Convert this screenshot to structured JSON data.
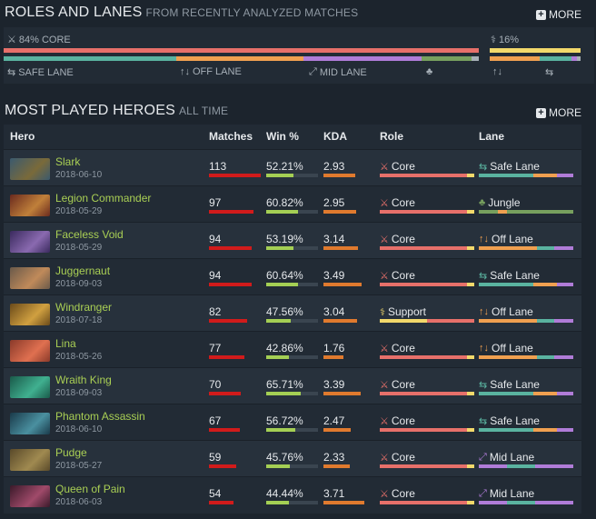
{
  "roles_section": {
    "title": "ROLES AND LANES",
    "subtitle": "FROM RECENTLY ANALYZED MATCHES",
    "more_label": "MORE",
    "core_label": "84% CORE",
    "support_label": "16%",
    "lanes": [
      {
        "label": "SAFE LANE",
        "icon": "safe-lane-icon"
      },
      {
        "label": "OFF LANE",
        "icon": "off-lane-icon"
      },
      {
        "label": "MID LANE",
        "icon": "mid-lane-icon"
      },
      {
        "label": "",
        "icon": "jungle-icon"
      }
    ],
    "support_lanes": [
      {
        "label": "",
        "icon": "off-lane-icon"
      },
      {
        "label": "",
        "icon": "safe-lane-icon"
      }
    ],
    "core_fraction": 0.84,
    "support_fraction": 0.16
  },
  "heroes_section": {
    "title": "MOST PLAYED HEROES",
    "subtitle": "ALL TIME",
    "more_label": "MORE",
    "columns": {
      "hero": "Hero",
      "matches": "Matches",
      "win": "Win %",
      "kda": "KDA",
      "role": "Role",
      "lane": "Lane"
    },
    "rows": [
      {
        "name": "Slark",
        "date": "2018-06-10",
        "matches": "113",
        "win": "52.21%",
        "kda": "2.93",
        "role": "Core",
        "lane": "Safe Lane",
        "avatar": "#3b5a6e",
        "avatar2": "#7a6a3a",
        "mfrac": 1.0,
        "wfrac": 0.52,
        "kfrac": 0.62,
        "roleType": "core",
        "laneType": "safe"
      },
      {
        "name": "Legion Commander",
        "date": "2018-05-29",
        "matches": "97",
        "win": "60.82%",
        "kda": "2.95",
        "role": "Core",
        "lane": "Jungle",
        "avatar": "#6a2a1e",
        "avatar2": "#c0803a",
        "mfrac": 0.86,
        "wfrac": 0.61,
        "kfrac": 0.63,
        "roleType": "core",
        "laneType": "jungle"
      },
      {
        "name": "Faceless Void",
        "date": "2018-05-29",
        "matches": "94",
        "win": "53.19%",
        "kda": "3.14",
        "role": "Core",
        "lane": "Off Lane",
        "avatar": "#3a2a5e",
        "avatar2": "#8a6ab0",
        "mfrac": 0.83,
        "wfrac": 0.53,
        "kfrac": 0.67,
        "roleType": "core",
        "laneType": "off"
      },
      {
        "name": "Juggernaut",
        "date": "2018-09-03",
        "matches": "94",
        "win": "60.64%",
        "kda": "3.49",
        "role": "Core",
        "lane": "Safe Lane",
        "avatar": "#6a5a4a",
        "avatar2": "#c08a5a",
        "mfrac": 0.83,
        "wfrac": 0.61,
        "kfrac": 0.74,
        "roleType": "core",
        "laneType": "safe"
      },
      {
        "name": "Windranger",
        "date": "2018-07-18",
        "matches": "82",
        "win": "47.56%",
        "kda": "3.04",
        "role": "Support",
        "lane": "Off Lane",
        "avatar": "#6a4a1a",
        "avatar2": "#d0a040",
        "mfrac": 0.73,
        "wfrac": 0.48,
        "kfrac": 0.65,
        "roleType": "support",
        "laneType": "off"
      },
      {
        "name": "Lina",
        "date": "2018-05-26",
        "matches": "77",
        "win": "42.86%",
        "kda": "1.76",
        "role": "Core",
        "lane": "Off Lane",
        "avatar": "#8a3a2a",
        "avatar2": "#e07050",
        "mfrac": 0.68,
        "wfrac": 0.43,
        "kfrac": 0.38,
        "roleType": "core",
        "laneType": "off"
      },
      {
        "name": "Wraith King",
        "date": "2018-09-03",
        "matches": "70",
        "win": "65.71%",
        "kda": "3.39",
        "role": "Core",
        "lane": "Safe Lane",
        "avatar": "#1a5a4a",
        "avatar2": "#40b090",
        "mfrac": 0.62,
        "wfrac": 0.66,
        "kfrac": 0.72,
        "roleType": "core",
        "laneType": "safe"
      },
      {
        "name": "Phantom Assassin",
        "date": "2018-06-10",
        "matches": "67",
        "win": "56.72%",
        "kda": "2.47",
        "role": "Core",
        "lane": "Safe Lane",
        "avatar": "#1a3a4a",
        "avatar2": "#4a90a0",
        "mfrac": 0.59,
        "wfrac": 0.57,
        "kfrac": 0.53,
        "roleType": "core",
        "laneType": "safe"
      },
      {
        "name": "Pudge",
        "date": "2018-05-27",
        "matches": "59",
        "win": "45.76%",
        "kda": "2.33",
        "role": "Core",
        "lane": "Mid Lane",
        "avatar": "#5a4a2a",
        "avatar2": "#a08a50",
        "mfrac": 0.52,
        "wfrac": 0.46,
        "kfrac": 0.5,
        "roleType": "core",
        "laneType": "mid"
      },
      {
        "name": "Queen of Pain",
        "date": "2018-06-03",
        "matches": "54",
        "win": "44.44%",
        "kda": "3.71",
        "role": "Core",
        "lane": "Mid Lane",
        "avatar": "#3a1a2a",
        "avatar2": "#a04a6a",
        "mfrac": 0.48,
        "wfrac": 0.44,
        "kfrac": 0.79,
        "roleType": "core",
        "laneType": "mid"
      }
    ]
  },
  "colors": {
    "core": "#e7706a",
    "support": "#f3d96b",
    "safe": "#5ab3a0",
    "off": "#f0a050",
    "mid": "#b07cd8",
    "jungle": "#77a05e",
    "matches_bar": "#d11b1b",
    "win_bar": "#a4cf54",
    "kda_bar": "#e07a2e"
  }
}
